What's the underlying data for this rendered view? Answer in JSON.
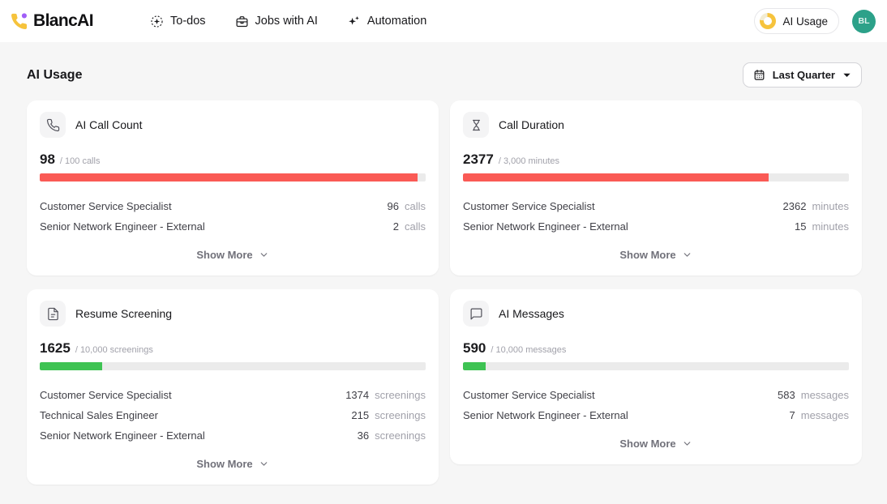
{
  "brand": {
    "name": "BlancAI",
    "logo_icon": "phone-logo-icon"
  },
  "nav": {
    "todos": {
      "label": "To-dos",
      "icon": "todos-sparkle-icon"
    },
    "jobs": {
      "label": "Jobs with AI",
      "icon": "briefcase-icon"
    },
    "automation": {
      "label": "Automation",
      "icon": "sparkles-icon"
    }
  },
  "header_right": {
    "usage_label": "AI Usage",
    "usage_icon": "donut-chart-icon",
    "avatar_initials": "BL"
  },
  "page": {
    "title": "AI Usage"
  },
  "filter": {
    "label": "Last Quarter",
    "icon": "calendar-icon",
    "caret": "caret-down-icon"
  },
  "ui": {
    "show_more": "Show More"
  },
  "colors": {
    "red_bar": "#fa5a55",
    "green_bar": "#3ec353",
    "track": "#ebebeb",
    "brand_yellow": "#f6c33c",
    "brand_purple": "#a05ef8",
    "avatar_teal": "#2ca189",
    "body_bg": "#f6f6f6"
  },
  "cards": [
    {
      "title": "AI Call Count",
      "icon": "phone-icon",
      "value": "98",
      "quota": "/ 100 calls",
      "progress_pct": 98,
      "bar_color": "#fa5a55",
      "rows": [
        {
          "label": "Customer Service Specialist",
          "value": "96",
          "unit": "calls"
        },
        {
          "label": "Senior Network Engineer - External",
          "value": "2",
          "unit": "calls"
        }
      ]
    },
    {
      "title": "Call Duration",
      "icon": "hourglass-icon",
      "value": "2377",
      "quota": "/ 3,000 minutes",
      "progress_pct": 79.2,
      "bar_color": "#fa5a55",
      "rows": [
        {
          "label": "Customer Service Specialist",
          "value": "2362",
          "unit": "minutes"
        },
        {
          "label": "Senior Network Engineer - External",
          "value": "15",
          "unit": "minutes"
        }
      ]
    },
    {
      "title": "Resume Screening",
      "icon": "document-icon",
      "value": "1625",
      "quota": "/ 10,000 screenings",
      "progress_pct": 16.25,
      "bar_color": "#3ec353",
      "rows": [
        {
          "label": "Customer Service Specialist",
          "value": "1374",
          "unit": "screenings"
        },
        {
          "label": "Technical Sales Engineer",
          "value": "215",
          "unit": "screenings"
        },
        {
          "label": "Senior Network Engineer - External",
          "value": "36",
          "unit": "screenings"
        }
      ]
    },
    {
      "title": "AI Messages",
      "icon": "message-bubble-icon",
      "value": "590",
      "quota": "/ 10,000 messages",
      "progress_pct": 5.9,
      "bar_color": "#3ec353",
      "rows": [
        {
          "label": "Customer Service Specialist",
          "value": "583",
          "unit": "messages"
        },
        {
          "label": "Senior Network Engineer - External",
          "value": "7",
          "unit": "messages"
        }
      ]
    }
  ]
}
